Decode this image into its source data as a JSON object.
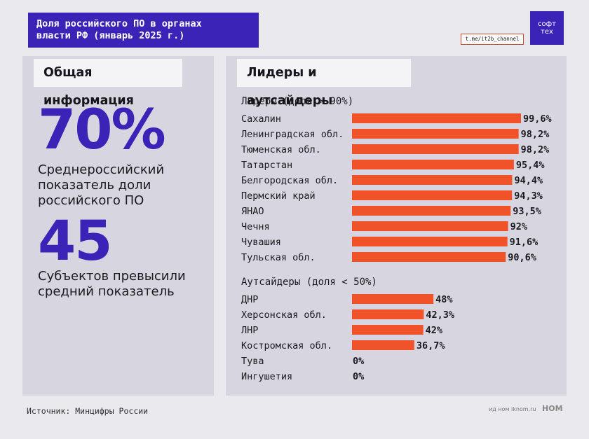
{
  "header": {
    "title_line1": "Доля российского ПО в органах",
    "title_line2": "власти РФ (январь 2025 г.)",
    "logo_line1": "софт",
    "logo_line2": "тех",
    "channel": "t.me/it2b_channel"
  },
  "left_panel": {
    "heading": "Общая информация",
    "stat1_value": "70%",
    "stat1_label": "Среднероссийский показатель доли российского ПО",
    "stat2_value": "45",
    "stat2_label": "Субъектов превысили средний показатель"
  },
  "right_panel": {
    "heading": "Лидеры и аутсайдеры"
  },
  "colors": {
    "accent": "#3b23b8",
    "bar": "#f0532a"
  },
  "chart_data": [
    {
      "type": "bar",
      "title": "Лидеры (доля > 90%)",
      "categories": [
        "Сахалин",
        "Ленинградская обл.",
        "Тюменская обл.",
        "Татарстан",
        "Белгородская обл.",
        "Пермский край",
        "ЯНАО",
        "Чечня",
        "Чувашия",
        "Тульская обл."
      ],
      "values": [
        99.6,
        98.2,
        98.2,
        95.4,
        94.4,
        94.3,
        93.5,
        92,
        91.6,
        90.6
      ],
      "value_labels": [
        "99,6%",
        "98,2%",
        "98,2%",
        "95,4%",
        "94,4%",
        "94,3%",
        "93,5%",
        "92%",
        "91,6%",
        "90,6%"
      ],
      "orientation": "horizontal",
      "xlim": [
        0,
        100
      ]
    },
    {
      "type": "bar",
      "title": "Аутсайдеры (доля < 50%)",
      "categories": [
        "ДНР",
        "Херсонская обл.",
        "ЛНР",
        "Костромская обл.",
        "Тува",
        "Ингушетия"
      ],
      "values": [
        48,
        42.3,
        42,
        36.7,
        0,
        0
      ],
      "value_labels": [
        "48%",
        "42,3%",
        "42%",
        "36,7%",
        "0%",
        "0%"
      ],
      "orientation": "horizontal",
      "xlim": [
        0,
        100
      ]
    }
  ],
  "footer": {
    "source": "Источник: Минцифры России",
    "credit": "ид ном iknom.ru",
    "brand": "НОМ"
  }
}
